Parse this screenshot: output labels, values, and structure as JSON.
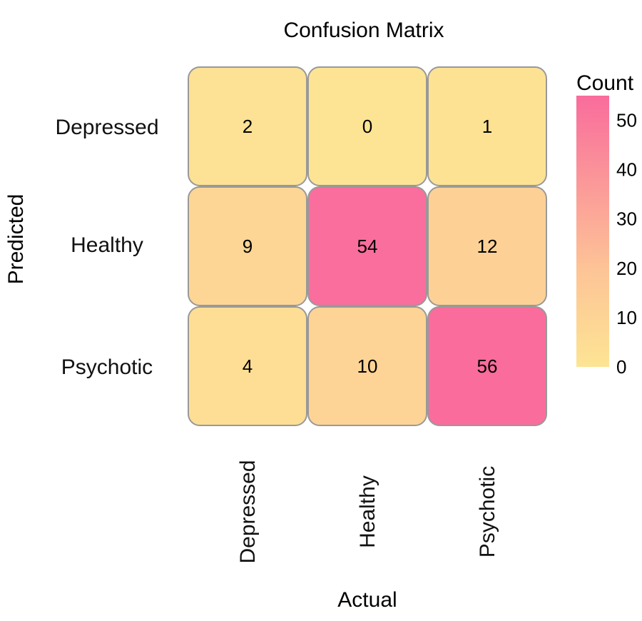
{
  "chart_data": {
    "type": "heatmap",
    "title": "Confusion Matrix",
    "xlabel": "Actual",
    "ylabel": "Predicted",
    "x_categories": [
      "Depressed",
      "Healthy",
      "Psychotic"
    ],
    "y_categories": [
      "Depressed",
      "Healthy",
      "Psychotic"
    ],
    "values": [
      [
        2,
        0,
        1
      ],
      [
        9,
        54,
        12
      ],
      [
        4,
        10,
        56
      ]
    ],
    "colorbar": {
      "title": "Count",
      "range": [
        0,
        55
      ],
      "ticks": [
        0,
        10,
        20,
        30,
        40,
        50
      ],
      "color_low": "#fde494",
      "color_mid": "#fdc596",
      "color_high": "#f96c9c"
    },
    "cell_border_color": "#999999"
  }
}
